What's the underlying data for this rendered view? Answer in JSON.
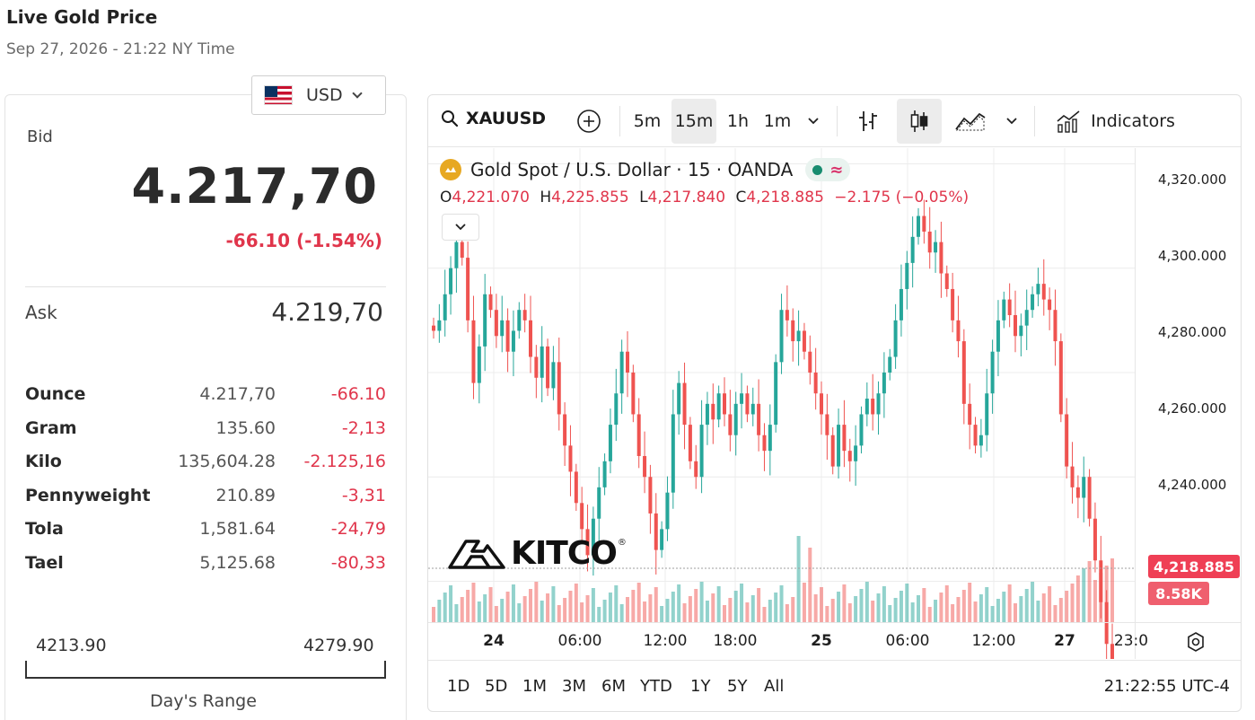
{
  "page": {
    "title": "Live Gold Price",
    "subtitle": "Sep 27, 2026 - 21:22 NY Time"
  },
  "currency": {
    "label": "USD",
    "icon": "us-flag-icon"
  },
  "quote": {
    "bid_label": "Bid",
    "bid_value": "4.217,70",
    "bid_change": "-66.10 (-1.54%)",
    "ask_label": "Ask",
    "ask_value": "4.219,70"
  },
  "units": [
    {
      "name": "Ounce",
      "price": "4.217,70",
      "change": "-66.10"
    },
    {
      "name": "Gram",
      "price": "135.60",
      "change": "-2,13"
    },
    {
      "name": "Kilo",
      "price": "135,604.28",
      "change": "-2.125,16"
    },
    {
      "name": "Pennyweight",
      "price": "210.89",
      "change": "-3,31"
    },
    {
      "name": "Tola",
      "price": "1,581.64",
      "change": "-24,79"
    },
    {
      "name": "Tael",
      "price": "5,125.68",
      "change": "-80,33"
    }
  ],
  "days_range": {
    "low": "4213.90",
    "high": "4279.90",
    "caption": "Day's Range"
  },
  "chart_toolbar": {
    "symbol": "XAUUSD",
    "intervals": [
      "5m",
      "15m",
      "1h",
      "1m"
    ],
    "active_interval": "15m",
    "indicators_label": "Indicators"
  },
  "chart_legend": {
    "instrument": "Gold Spot / U.S. Dollar · 15 · OANDA",
    "pill_wave": "≈",
    "o_label": "O",
    "o_value": "4,221.070",
    "h_label": "H",
    "h_value": "4,225.855",
    "l_label": "L",
    "l_value": "4,217.840",
    "c_label": "C",
    "c_value": "4,218.885",
    "change": "−2.175 (−0.05%)"
  },
  "price_axis": [
    "4,320.000",
    "4,300.000",
    "4,280.000",
    "4,260.000",
    "4,240.000"
  ],
  "last_price_tag": "4,218.885",
  "volume_tag": "8.58K",
  "time_axis": [
    "24",
    "06:00",
    "12:00",
    "18:00",
    "25",
    "06:00",
    "12:00",
    "27",
    "23:0"
  ],
  "range_buttons": [
    "1D",
    "5D",
    "1M",
    "3M",
    "6M",
    "YTD",
    "1Y",
    "5Y",
    "All"
  ],
  "clock": "21:22:55 UTC-4",
  "watermark": "KITCO",
  "colors": {
    "up": "#26a69a",
    "down": "#ef5350",
    "accent_red": "#e0354b"
  },
  "chart_data": {
    "type": "candlestick",
    "symbol": "XAUUSD",
    "interval": "15m",
    "ylim": [
      4232,
      4323
    ],
    "closes": [
      4288,
      4290,
      4295,
      4300,
      4305,
      4302,
      4290,
      4278,
      4285,
      4295,
      4292,
      4287,
      4290,
      4284,
      4288,
      4292,
      4290,
      4283,
      4279,
      4285,
      4277,
      4282,
      4272,
      4266,
      4261,
      4255,
      4250,
      4245,
      4252,
      4258,
      4263,
      4270,
      4276,
      4284,
      4280,
      4272,
      4264,
      4260,
      4253,
      4246,
      4250,
      4257,
      4272,
      4278,
      4270,
      4263,
      4260,
      4270,
      4274,
      4271,
      4276,
      4272,
      4268,
      4274,
      4276,
      4272,
      4274,
      4268,
      4265,
      4270,
      4282,
      4292,
      4290,
      4286,
      4288,
      4284,
      4280,
      4276,
      4272,
      4268,
      4262,
      4270,
      4265,
      4263,
      4266,
      4272,
      4275,
      4272,
      4276,
      4280,
      4283,
      4290,
      4296,
      4301,
      4306,
      4310,
      4307,
      4303,
      4305,
      4299,
      4296,
      4290,
      4286,
      4274,
      4270,
      4266,
      4268,
      4276,
      4284,
      4290,
      4294,
      4291,
      4287,
      4289,
      4292,
      4295,
      4297,
      4294,
      4292,
      4286,
      4272,
      4262,
      4258,
      4256,
      4260,
      4252,
      4244,
      4236,
      4228,
      4219
    ]
  }
}
